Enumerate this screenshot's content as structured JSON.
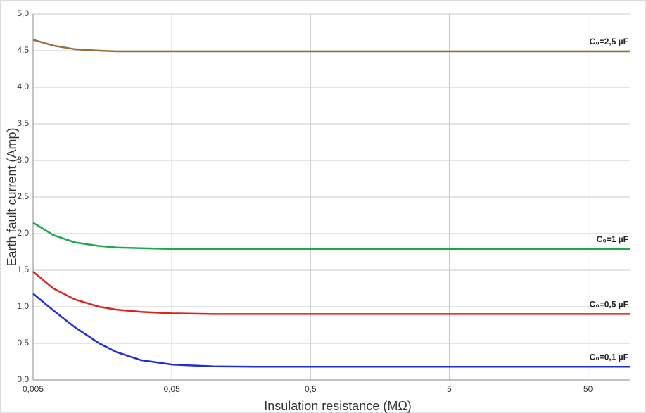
{
  "chart_data": {
    "type": "line",
    "x_label": "Insulation resistance (MΩ)",
    "y_label": "Earth fault current (Amp)",
    "x": [
      0.005,
      0.007,
      0.01,
      0.015,
      0.02,
      0.03,
      0.05,
      0.1,
      0.2,
      0.5,
      1,
      5,
      50,
      100
    ],
    "xscale": "log",
    "xlim": [
      0.005,
      100
    ],
    "xticks": [
      {
        "value": 0.005,
        "label": "0,005"
      },
      {
        "value": 0.05,
        "label": "0,05"
      },
      {
        "value": 0.5,
        "label": "0,5"
      },
      5,
      50
    ],
    "ylim": [
      0,
      5
    ],
    "yticks": [
      {
        "value": 0,
        "label": "0,0"
      },
      {
        "value": 0.5,
        "label": "0,5"
      },
      {
        "value": 1,
        "label": "1,0"
      },
      {
        "value": 1.5,
        "label": "1,5"
      },
      {
        "value": 2,
        "label": "2,0"
      },
      {
        "value": 2.5,
        "label": "2,5"
      },
      {
        "value": 3,
        "label": "3,0"
      },
      {
        "value": 3.5,
        "label": "3,5"
      },
      {
        "value": 4,
        "label": "4,0"
      },
      {
        "value": 4.5,
        "label": "4,5"
      },
      {
        "value": 5,
        "label": "5,0"
      }
    ],
    "grid": true,
    "series": [
      {
        "name": "C₀=2,5 µF",
        "color": "#9c6b3c",
        "values": [
          4.65,
          4.57,
          4.52,
          4.5,
          4.49,
          4.49,
          4.49,
          4.49,
          4.49,
          4.49,
          4.49,
          4.49,
          4.49,
          4.49
        ]
      },
      {
        "name": "C₀=1 µF",
        "color": "#1ea64a",
        "values": [
          2.15,
          1.98,
          1.88,
          1.83,
          1.81,
          1.8,
          1.79,
          1.79,
          1.79,
          1.79,
          1.79,
          1.79,
          1.79,
          1.79
        ]
      },
      {
        "name": "C₀=0,5 µF",
        "color": "#e0201b",
        "values": [
          1.48,
          1.25,
          1.1,
          1.0,
          0.96,
          0.93,
          0.91,
          0.9,
          0.9,
          0.9,
          0.9,
          0.9,
          0.9,
          0.9
        ]
      },
      {
        "name": "C₀=0,1 µF",
        "color": "#1f2ecc",
        "values": [
          1.18,
          0.95,
          0.72,
          0.5,
          0.38,
          0.27,
          0.21,
          0.185,
          0.18,
          0.18,
          0.18,
          0.18,
          0.18,
          0.18
        ]
      }
    ]
  }
}
